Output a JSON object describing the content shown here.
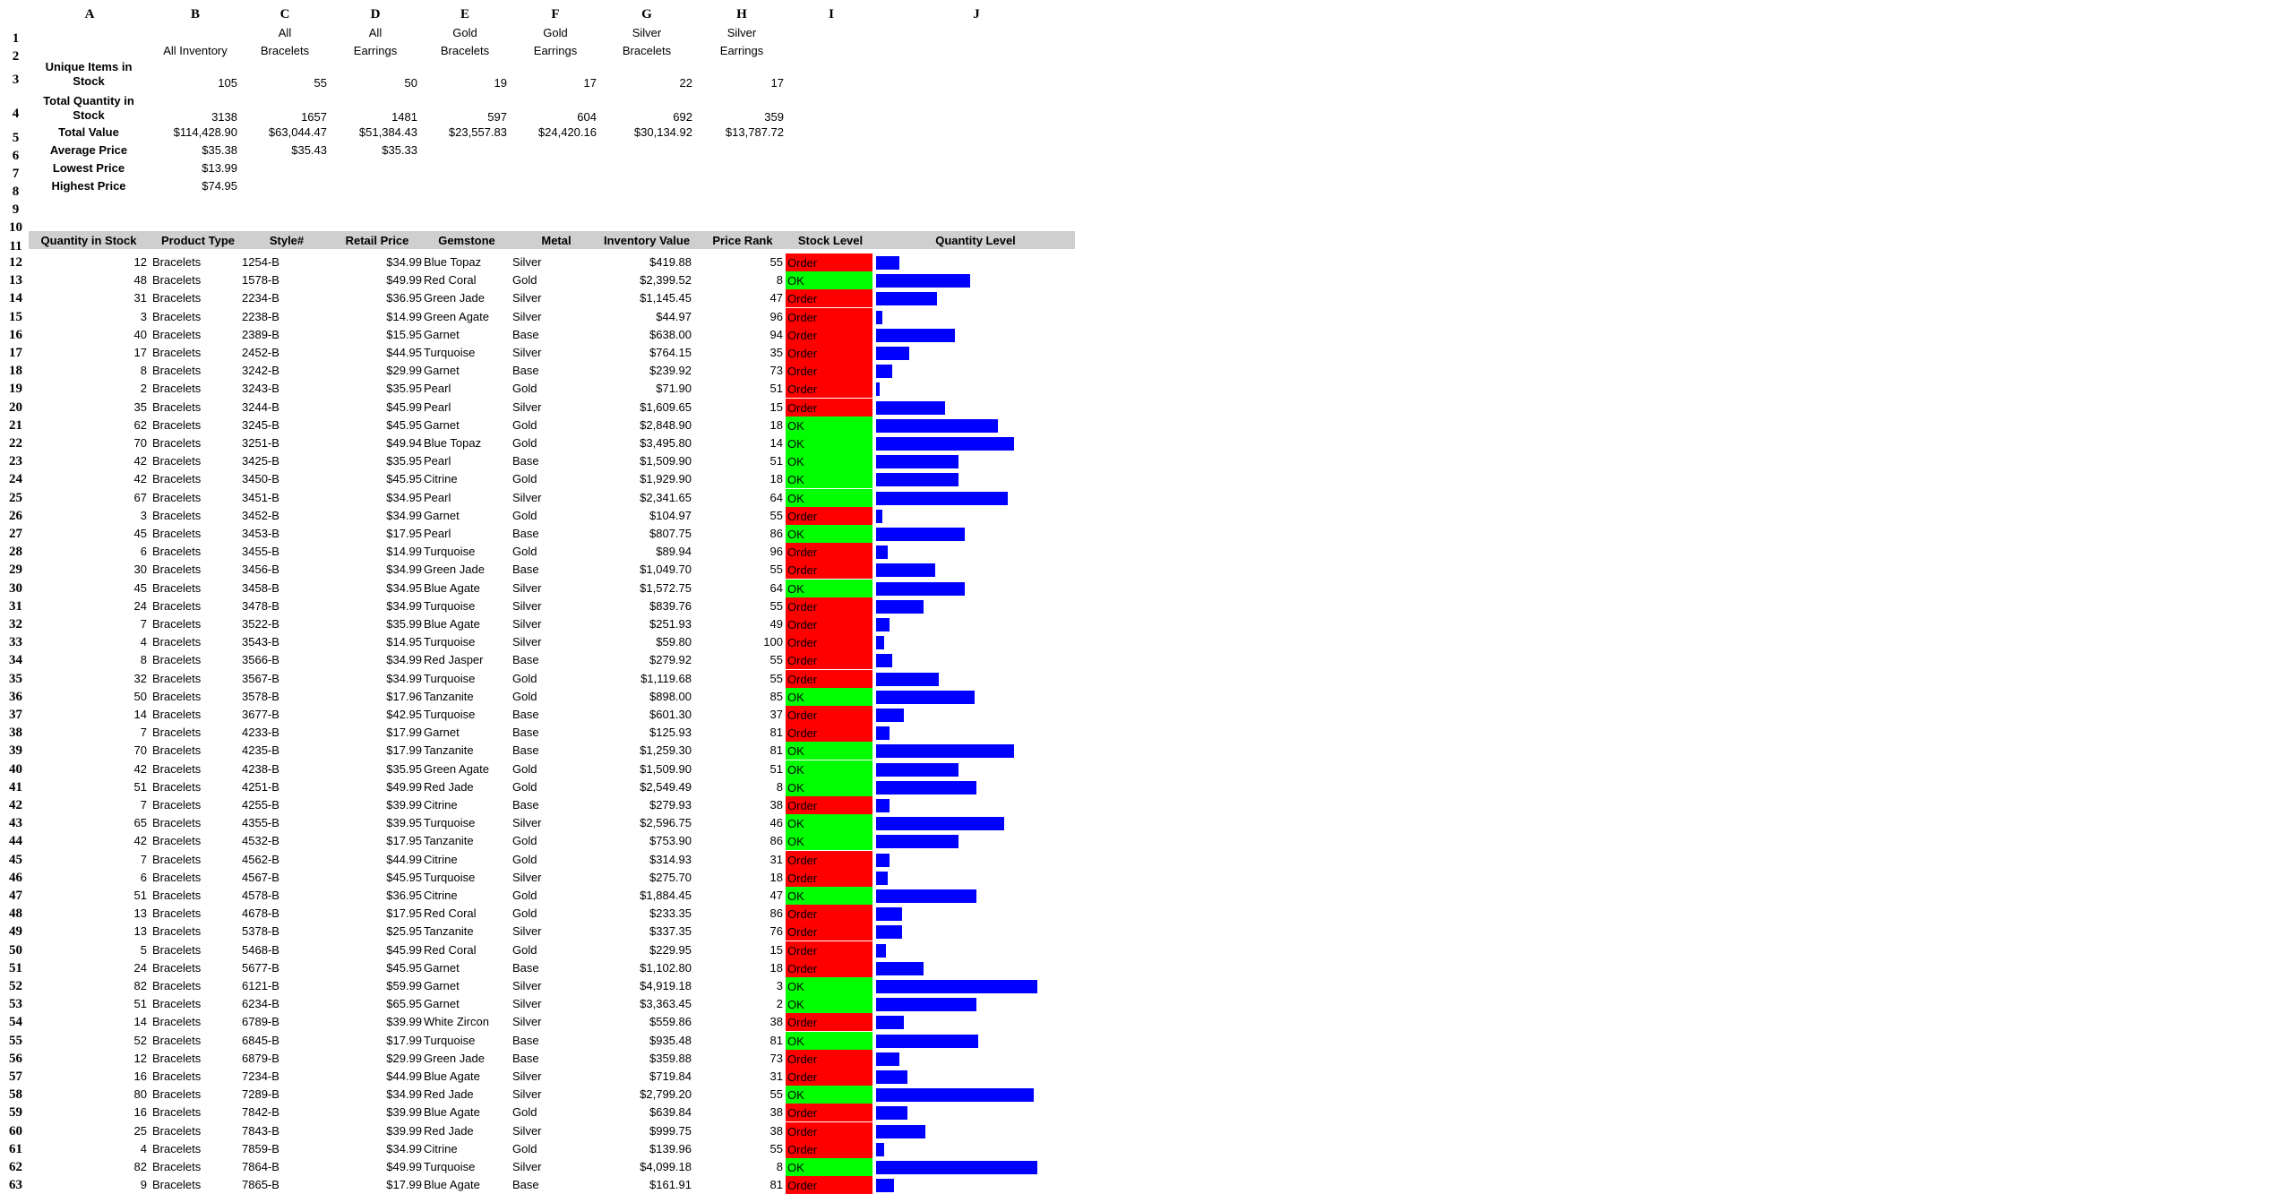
{
  "colors": {
    "header_band": "#cfcfcf",
    "ok": "#00ff00",
    "order": "#ff0000",
    "bar": "#0000ff"
  },
  "columns": [
    "A",
    "B",
    "C",
    "D",
    "E",
    "F",
    "G",
    "H",
    "I",
    "J"
  ],
  "top_headers": {
    "row1": [
      "",
      "All",
      "All",
      "Gold",
      "Gold",
      "Silver",
      "Silver"
    ],
    "row2": [
      "All Inventory",
      "Bracelets",
      "Earrings",
      "Bracelets",
      "Earrings",
      "Bracelets",
      "Earrings"
    ]
  },
  "summary": [
    {
      "label": "Unique Items in Stock",
      "values": [
        "105",
        "55",
        "50",
        "19",
        "17",
        "22",
        "17"
      ]
    },
    {
      "label": "Total Quantity in Stock",
      "values": [
        "3138",
        "1657",
        "1481",
        "597",
        "604",
        "692",
        "359"
      ]
    },
    {
      "label": "Total Value",
      "values": [
        "$114,428.90",
        "$63,044.47",
        "$51,384.43",
        "$23,557.83",
        "$24,420.16",
        "$30,134.92",
        "$13,787.72"
      ]
    },
    {
      "label": "Average Price",
      "values": [
        "$35.38",
        "$35.43",
        "$35.33",
        "",
        "",
        "",
        ""
      ]
    },
    {
      "label": "Lowest Price",
      "values": [
        "$13.99",
        "",
        "",
        "",
        "",
        "",
        ""
      ]
    },
    {
      "label": "Highest Price",
      "values": [
        "$74.95",
        "",
        "",
        "",
        "",
        "",
        ""
      ]
    }
  ],
  "table_headers": [
    "Quantity in Stock",
    "Product Type",
    "Style#",
    "Retail Price",
    "Gemstone",
    "Metal",
    "Inventory Value",
    "Price Rank",
    "Stock Level",
    "Quantity Level"
  ],
  "rows": [
    [
      12,
      "Bracelets",
      "1254-B",
      "$34.99",
      "Blue Topaz",
      "Silver",
      "$419.88",
      55,
      "Order"
    ],
    [
      48,
      "Bracelets",
      "1578-B",
      "$49.99",
      "Red Coral",
      "Gold",
      "$2,399.52",
      8,
      "OK"
    ],
    [
      31,
      "Bracelets",
      "2234-B",
      "$36.95",
      "Green Jade",
      "Silver",
      "$1,145.45",
      47,
      "Order"
    ],
    [
      3,
      "Bracelets",
      "2238-B",
      "$14.99",
      "Green Agate",
      "Silver",
      "$44.97",
      96,
      "Order"
    ],
    [
      40,
      "Bracelets",
      "2389-B",
      "$15.95",
      "Garnet",
      "Base",
      "$638.00",
      94,
      "Order"
    ],
    [
      17,
      "Bracelets",
      "2452-B",
      "$44.95",
      "Turquoise",
      "Silver",
      "$764.15",
      35,
      "Order"
    ],
    [
      8,
      "Bracelets",
      "3242-B",
      "$29.99",
      "Garnet",
      "Base",
      "$239.92",
      73,
      "Order"
    ],
    [
      2,
      "Bracelets",
      "3243-B",
      "$35.95",
      "Pearl",
      "Gold",
      "$71.90",
      51,
      "Order"
    ],
    [
      35,
      "Bracelets",
      "3244-B",
      "$45.99",
      "Pearl",
      "Silver",
      "$1,609.65",
      15,
      "Order"
    ],
    [
      62,
      "Bracelets",
      "3245-B",
      "$45.95",
      "Garnet",
      "Gold",
      "$2,848.90",
      18,
      "OK"
    ],
    [
      70,
      "Bracelets",
      "3251-B",
      "$49.94",
      "Blue Topaz",
      "Gold",
      "$3,495.80",
      14,
      "OK"
    ],
    [
      42,
      "Bracelets",
      "3425-B",
      "$35.95",
      "Pearl",
      "Base",
      "$1,509.90",
      51,
      "OK"
    ],
    [
      42,
      "Bracelets",
      "3450-B",
      "$45.95",
      "Citrine",
      "Gold",
      "$1,929.90",
      18,
      "OK"
    ],
    [
      67,
      "Bracelets",
      "3451-B",
      "$34.95",
      "Pearl",
      "Silver",
      "$2,341.65",
      64,
      "OK"
    ],
    [
      3,
      "Bracelets",
      "3452-B",
      "$34.99",
      "Garnet",
      "Gold",
      "$104.97",
      55,
      "Order"
    ],
    [
      45,
      "Bracelets",
      "3453-B",
      "$17.95",
      "Pearl",
      "Base",
      "$807.75",
      86,
      "OK"
    ],
    [
      6,
      "Bracelets",
      "3455-B",
      "$14.99",
      "Turquoise",
      "Gold",
      "$89.94",
      96,
      "Order"
    ],
    [
      30,
      "Bracelets",
      "3456-B",
      "$34.99",
      "Green Jade",
      "Base",
      "$1,049.70",
      55,
      "Order"
    ],
    [
      45,
      "Bracelets",
      "3458-B",
      "$34.95",
      "Blue Agate",
      "Silver",
      "$1,572.75",
      64,
      "OK"
    ],
    [
      24,
      "Bracelets",
      "3478-B",
      "$34.99",
      "Turquoise",
      "Silver",
      "$839.76",
      55,
      "Order"
    ],
    [
      7,
      "Bracelets",
      "3522-B",
      "$35.99",
      "Blue Agate",
      "Silver",
      "$251.93",
      49,
      "Order"
    ],
    [
      4,
      "Bracelets",
      "3543-B",
      "$14.95",
      "Turquoise",
      "Silver",
      "$59.80",
      100,
      "Order"
    ],
    [
      8,
      "Bracelets",
      "3566-B",
      "$34.99",
      "Red Jasper",
      "Base",
      "$279.92",
      55,
      "Order"
    ],
    [
      32,
      "Bracelets",
      "3567-B",
      "$34.99",
      "Turquoise",
      "Gold",
      "$1,119.68",
      55,
      "Order"
    ],
    [
      50,
      "Bracelets",
      "3578-B",
      "$17.96",
      "Tanzanite",
      "Gold",
      "$898.00",
      85,
      "OK"
    ],
    [
      14,
      "Bracelets",
      "3677-B",
      "$42.95",
      "Turquoise",
      "Base",
      "$601.30",
      37,
      "Order"
    ],
    [
      7,
      "Bracelets",
      "4233-B",
      "$17.99",
      "Garnet",
      "Base",
      "$125.93",
      81,
      "Order"
    ],
    [
      70,
      "Bracelets",
      "4235-B",
      "$17.99",
      "Tanzanite",
      "Base",
      "$1,259.30",
      81,
      "OK"
    ],
    [
      42,
      "Bracelets",
      "4238-B",
      "$35.95",
      "Green Agate",
      "Gold",
      "$1,509.90",
      51,
      "OK"
    ],
    [
      51,
      "Bracelets",
      "4251-B",
      "$49.99",
      "Red Jade",
      "Gold",
      "$2,549.49",
      8,
      "OK"
    ],
    [
      7,
      "Bracelets",
      "4255-B",
      "$39.99",
      "Citrine",
      "Base",
      "$279.93",
      38,
      "Order"
    ],
    [
      65,
      "Bracelets",
      "4355-B",
      "$39.95",
      "Turquoise",
      "Silver",
      "$2,596.75",
      46,
      "OK"
    ],
    [
      42,
      "Bracelets",
      "4532-B",
      "$17.95",
      "Tanzanite",
      "Gold",
      "$753.90",
      86,
      "OK"
    ],
    [
      7,
      "Bracelets",
      "4562-B",
      "$44.99",
      "Citrine",
      "Gold",
      "$314.93",
      31,
      "Order"
    ],
    [
      6,
      "Bracelets",
      "4567-B",
      "$45.95",
      "Turquoise",
      "Silver",
      "$275.70",
      18,
      "Order"
    ],
    [
      51,
      "Bracelets",
      "4578-B",
      "$36.95",
      "Citrine",
      "Gold",
      "$1,884.45",
      47,
      "OK"
    ],
    [
      13,
      "Bracelets",
      "4678-B",
      "$17.95",
      "Red Coral",
      "Gold",
      "$233.35",
      86,
      "Order"
    ],
    [
      13,
      "Bracelets",
      "5378-B",
      "$25.95",
      "Tanzanite",
      "Silver",
      "$337.35",
      76,
      "Order"
    ],
    [
      5,
      "Bracelets",
      "5468-B",
      "$45.99",
      "Red Coral",
      "Gold",
      "$229.95",
      15,
      "Order"
    ],
    [
      24,
      "Bracelets",
      "5677-B",
      "$45.95",
      "Garnet",
      "Base",
      "$1,102.80",
      18,
      "Order"
    ],
    [
      82,
      "Bracelets",
      "6121-B",
      "$59.99",
      "Garnet",
      "Silver",
      "$4,919.18",
      3,
      "OK"
    ],
    [
      51,
      "Bracelets",
      "6234-B",
      "$65.95",
      "Garnet",
      "Silver",
      "$3,363.45",
      2,
      "OK"
    ],
    [
      14,
      "Bracelets",
      "6789-B",
      "$39.99",
      "White Zircon",
      "Silver",
      "$559.86",
      38,
      "Order"
    ],
    [
      52,
      "Bracelets",
      "6845-B",
      "$17.99",
      "Turquoise",
      "Base",
      "$935.48",
      81,
      "OK"
    ],
    [
      12,
      "Bracelets",
      "6879-B",
      "$29.99",
      "Green Jade",
      "Base",
      "$359.88",
      73,
      "Order"
    ],
    [
      16,
      "Bracelets",
      "7234-B",
      "$44.99",
      "Blue Agate",
      "Silver",
      "$719.84",
      31,
      "Order"
    ],
    [
      80,
      "Bracelets",
      "7289-B",
      "$34.99",
      "Red Jade",
      "Silver",
      "$2,799.20",
      55,
      "OK"
    ],
    [
      16,
      "Bracelets",
      "7842-B",
      "$39.99",
      "Blue Agate",
      "Gold",
      "$639.84",
      38,
      "Order"
    ],
    [
      25,
      "Bracelets",
      "7843-B",
      "$39.99",
      "Red Jade",
      "Silver",
      "$999.75",
      38,
      "Order"
    ],
    [
      4,
      "Bracelets",
      "7859-B",
      "$34.99",
      "Citrine",
      "Gold",
      "$139.96",
      55,
      "Order"
    ],
    [
      82,
      "Bracelets",
      "7864-B",
      "$49.99",
      "Turquoise",
      "Silver",
      "$4,099.18",
      8,
      "OK"
    ],
    [
      9,
      "Bracelets",
      "7865-B",
      "$17.99",
      "Blue Agate",
      "Base",
      "$161.91",
      81,
      "Order"
    ]
  ]
}
